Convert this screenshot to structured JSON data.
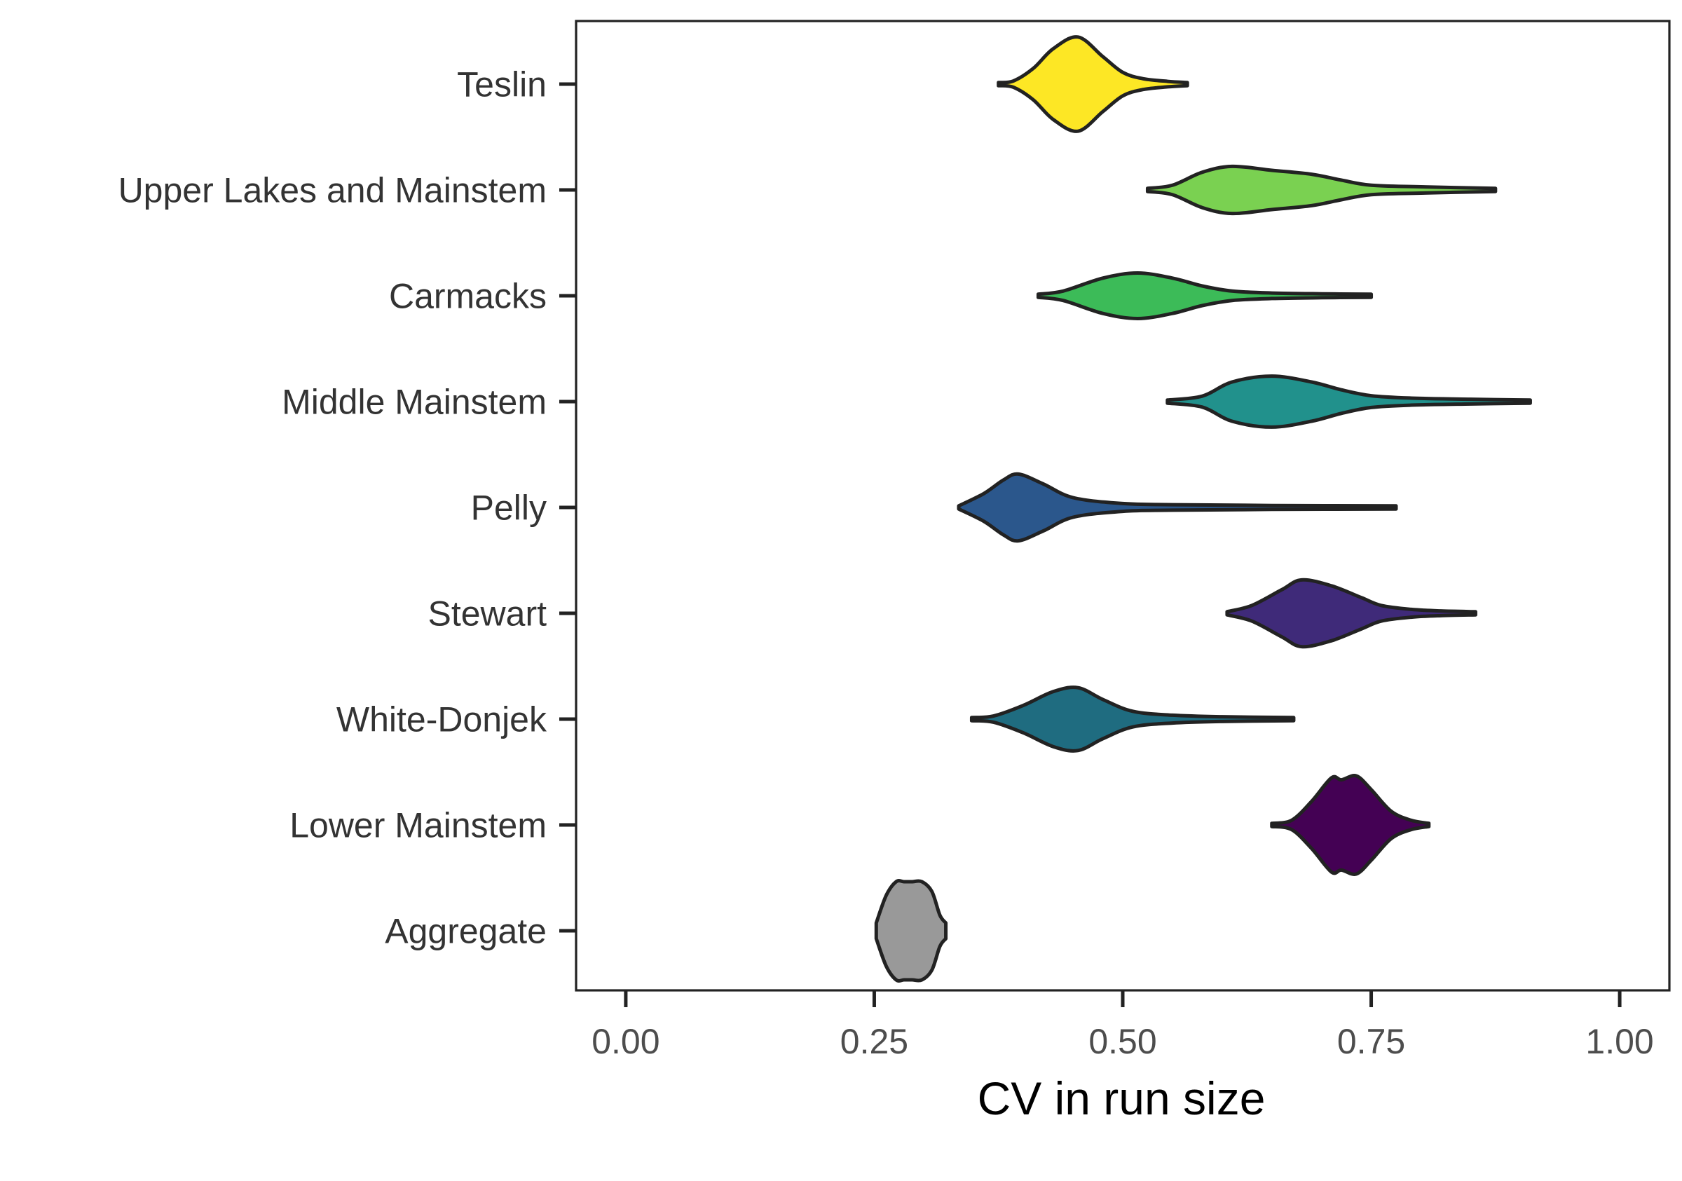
{
  "chart_data": {
    "type": "violin",
    "orientation": "horizontal",
    "title": "",
    "xlabel": "CV in run size",
    "ylabel": "",
    "xlim": [
      -0.05,
      1.05
    ],
    "x_ticks": [
      0.0,
      0.25,
      0.5,
      0.75,
      1.0
    ],
    "x_tick_labels": [
      "0.00",
      "0.25",
      "0.50",
      "0.75",
      "1.00"
    ],
    "grid": false,
    "legend": "none",
    "categories": [
      "Teslin",
      "Upper Lakes and Mainstem",
      "Carmacks",
      "Middle Mainstem",
      "Pelly",
      "Stewart",
      "White-Donjek",
      "Lower Mainstem",
      "Aggregate"
    ],
    "series": [
      {
        "category": "Teslin",
        "color": "#FDE725",
        "min": 0.375,
        "max": 0.565,
        "profile": [
          [
            0.375,
            0.004
          ],
          [
            0.39,
            0.008
          ],
          [
            0.41,
            0.04
          ],
          [
            0.43,
            0.09
          ],
          [
            0.455,
            0.12
          ],
          [
            0.48,
            0.07
          ],
          [
            0.5,
            0.03
          ],
          [
            0.52,
            0.014
          ],
          [
            0.545,
            0.007
          ],
          [
            0.565,
            0.004
          ]
        ]
      },
      {
        "category": "Upper Lakes and Mainstem",
        "color": "#7AD151",
        "min": 0.525,
        "max": 0.875,
        "profile": [
          [
            0.525,
            0.004
          ],
          [
            0.55,
            0.012
          ],
          [
            0.58,
            0.045
          ],
          [
            0.61,
            0.06
          ],
          [
            0.65,
            0.05
          ],
          [
            0.69,
            0.04
          ],
          [
            0.72,
            0.025
          ],
          [
            0.75,
            0.012
          ],
          [
            0.8,
            0.008
          ],
          [
            0.875,
            0.004
          ]
        ]
      },
      {
        "category": "Carmacks",
        "color": "#3CBB58",
        "min": 0.415,
        "max": 0.75,
        "profile": [
          [
            0.415,
            0.004
          ],
          [
            0.44,
            0.012
          ],
          [
            0.48,
            0.045
          ],
          [
            0.515,
            0.058
          ],
          [
            0.55,
            0.045
          ],
          [
            0.58,
            0.025
          ],
          [
            0.61,
            0.012
          ],
          [
            0.65,
            0.007
          ],
          [
            0.7,
            0.005
          ],
          [
            0.75,
            0.004
          ]
        ]
      },
      {
        "category": "Middle Mainstem",
        "color": "#21918C",
        "min": 0.545,
        "max": 0.91,
        "profile": [
          [
            0.545,
            0.004
          ],
          [
            0.58,
            0.014
          ],
          [
            0.61,
            0.05
          ],
          [
            0.65,
            0.065
          ],
          [
            0.69,
            0.05
          ],
          [
            0.72,
            0.03
          ],
          [
            0.75,
            0.015
          ],
          [
            0.79,
            0.009
          ],
          [
            0.85,
            0.006
          ],
          [
            0.91,
            0.004
          ]
        ]
      },
      {
        "category": "Pelly",
        "color": "#2B578C",
        "min": 0.335,
        "max": 0.775,
        "profile": [
          [
            0.335,
            0.004
          ],
          [
            0.36,
            0.035
          ],
          [
            0.38,
            0.07
          ],
          [
            0.395,
            0.085
          ],
          [
            0.42,
            0.06
          ],
          [
            0.45,
            0.025
          ],
          [
            0.5,
            0.01
          ],
          [
            0.55,
            0.007
          ],
          [
            0.65,
            0.005
          ],
          [
            0.775,
            0.004
          ]
        ]
      },
      {
        "category": "Stewart",
        "color": "#3F2A79",
        "min": 0.605,
        "max": 0.855,
        "profile": [
          [
            0.605,
            0.004
          ],
          [
            0.63,
            0.02
          ],
          [
            0.66,
            0.06
          ],
          [
            0.68,
            0.085
          ],
          [
            0.71,
            0.07
          ],
          [
            0.74,
            0.04
          ],
          [
            0.76,
            0.02
          ],
          [
            0.79,
            0.01
          ],
          [
            0.82,
            0.006
          ],
          [
            0.855,
            0.004
          ]
        ]
      },
      {
        "category": "White-Donjek",
        "color": "#1F6C80",
        "min": 0.348,
        "max": 0.672,
        "profile": [
          [
            0.348,
            0.004
          ],
          [
            0.37,
            0.008
          ],
          [
            0.4,
            0.035
          ],
          [
            0.43,
            0.07
          ],
          [
            0.455,
            0.08
          ],
          [
            0.48,
            0.05
          ],
          [
            0.51,
            0.02
          ],
          [
            0.55,
            0.01
          ],
          [
            0.6,
            0.006
          ],
          [
            0.672,
            0.004
          ]
        ]
      },
      {
        "category": "Lower Mainstem",
        "color": "#440154",
        "min": 0.65,
        "max": 0.808,
        "profile": [
          [
            0.65,
            0.004
          ],
          [
            0.67,
            0.012
          ],
          [
            0.69,
            0.06
          ],
          [
            0.71,
            0.12
          ],
          [
            0.72,
            0.115
          ],
          [
            0.735,
            0.125
          ],
          [
            0.75,
            0.09
          ],
          [
            0.77,
            0.035
          ],
          [
            0.79,
            0.012
          ],
          [
            0.808,
            0.004
          ]
        ]
      },
      {
        "category": "Aggregate",
        "color": "#999999",
        "min": 0.252,
        "max": 0.322,
        "profile": [
          [
            0.252,
            0.02
          ],
          [
            0.262,
            0.09
          ],
          [
            0.272,
            0.18
          ],
          [
            0.28,
            0.26
          ],
          [
            0.288,
            0.3
          ],
          [
            0.298,
            0.2
          ],
          [
            0.308,
            0.1
          ],
          [
            0.316,
            0.04
          ],
          [
            0.322,
            0.02
          ]
        ]
      }
    ]
  }
}
